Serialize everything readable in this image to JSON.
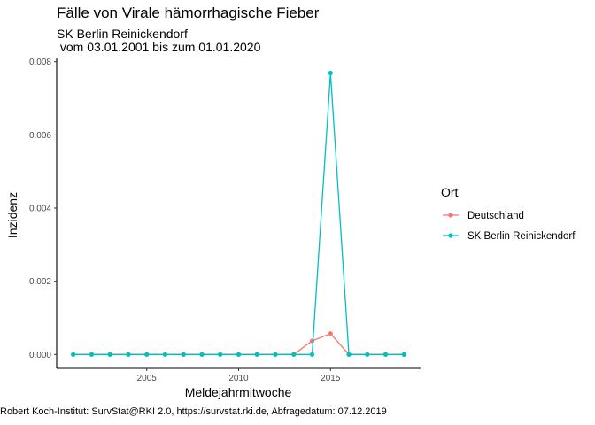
{
  "chart_data": {
    "type": "line",
    "title": "Fälle von Virale hämorrhagische Fieber",
    "subtitle": "SK Berlin Reinickendorf\n vom 03.01.2001 bis zum 01.01.2020",
    "xlabel": "Meldejahrmitwoche",
    "ylabel": "Inzidenz",
    "caption": "Robert Koch-Institut: SurvStat@RKI 2.0, https://survstat.rki.de, Abfragedatum: 07.12.2019",
    "legend_title": "Ort",
    "legend_position": "right",
    "grid": false,
    "xlim": [
      2000.1,
      2019.9
    ],
    "ylim": [
      -0.00038,
      0.00809
    ],
    "x_ticks": [
      2005,
      2010,
      2015
    ],
    "x_tick_labels": [
      "2005",
      "2010",
      "2015"
    ],
    "y_ticks": [
      0.0,
      0.002,
      0.004,
      0.006,
      0.008
    ],
    "y_tick_labels": [
      "0.000",
      "0.002",
      "0.004",
      "0.006",
      "0.008"
    ],
    "x": [
      2001,
      2002,
      2003,
      2004,
      2005,
      2006,
      2007,
      2008,
      2009,
      2010,
      2011,
      2012,
      2013,
      2014,
      2015,
      2016,
      2017,
      2018,
      2019
    ],
    "series": [
      {
        "name": "Deutschland",
        "color": "#F8766D",
        "values": [
          0,
          0,
          0,
          0,
          0,
          0,
          0,
          0,
          0,
          0,
          0,
          0,
          0,
          0.00037,
          0.00057,
          0,
          0,
          0,
          0
        ]
      },
      {
        "name": "SK Berlin Reinickendorf",
        "color": "#00BFC4",
        "values": [
          0,
          0,
          0,
          0,
          0,
          0,
          0,
          0,
          0,
          0,
          0,
          0,
          0,
          0,
          0.00769,
          0,
          0,
          0,
          0
        ]
      }
    ]
  }
}
